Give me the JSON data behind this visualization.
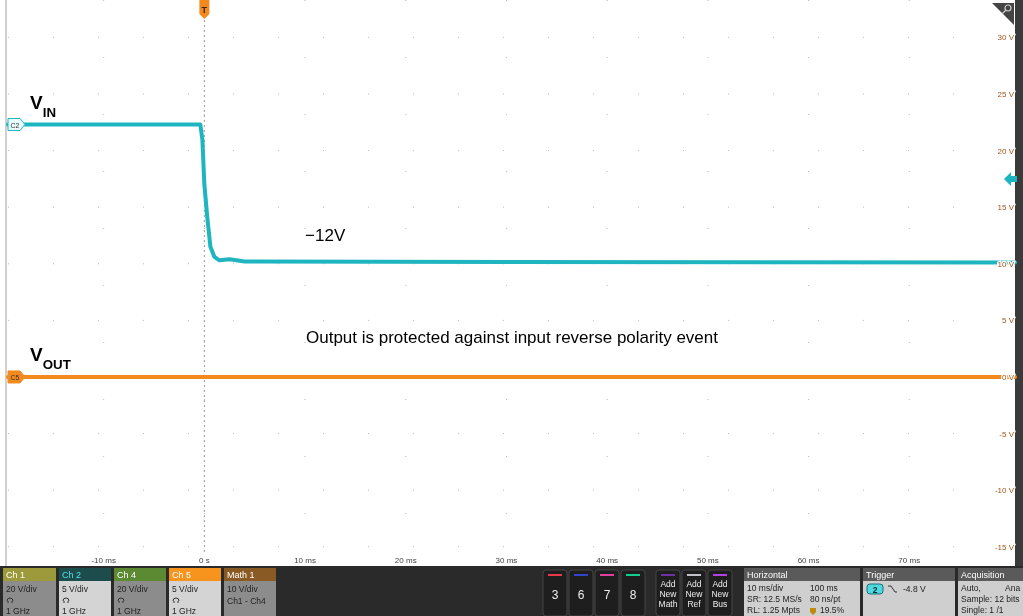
{
  "chart_data": [
    {
      "type": "line",
      "xlim": [
        -19.5,
        80.5
      ],
      "ylim": [
        -16.7,
        33.3
      ],
      "xticks": [
        {
          "value": -10,
          "label": "-10 ms"
        },
        {
          "value": 0,
          "label": "0 s"
        },
        {
          "value": 10,
          "label": "10 ms"
        },
        {
          "value": 20,
          "label": "20 ms"
        },
        {
          "value": 30,
          "label": "30 ms"
        },
        {
          "value": 40,
          "label": "40 ms"
        },
        {
          "value": 50,
          "label": "50 ms"
        },
        {
          "value": 60,
          "label": "60 ms"
        },
        {
          "value": 70,
          "label": "70 ms"
        }
      ],
      "yticks": [
        {
          "value": -15,
          "label": "-15 V"
        },
        {
          "value": -10,
          "label": "-10 V"
        },
        {
          "value": -5,
          "label": "-5 V"
        },
        {
          "value": 0,
          "label": "0 V"
        },
        {
          "value": 5,
          "label": "5 V"
        },
        {
          "value": 10,
          "label": "10 V"
        },
        {
          "value": 15,
          "label": "15 V"
        },
        {
          "value": 20,
          "label": "20 V"
        },
        {
          "value": 25,
          "label": "25 V"
        },
        {
          "value": 30,
          "label": "30 V"
        }
      ],
      "grid": true,
      "series": [
        {
          "name": "V$_{IN}$",
          "color": "#1fb5c0",
          "x": [
            -19.5,
            -0.4,
            -0.2,
            0,
            0.3,
            0.6,
            1,
            1.5,
            2.5,
            4,
            80.5
          ],
          "values": [
            22.3,
            22.3,
            21,
            17,
            14,
            11.5,
            10.6,
            10.3,
            10.4,
            10.2,
            10.1
          ]
        },
        {
          "name": "V$_{OUT}$",
          "color": "#f28a1e",
          "x": [
            -19.5,
            80.5
          ],
          "values": [
            0,
            0
          ]
        }
      ],
      "ref_lines": [
        {
          "axis": "x",
          "value": 0,
          "label": "T",
          "line_style": "dotted"
        }
      ],
      "annotations": [
        "−12V",
        "Output is protected against input reverse polarity event",
        "C2",
        "C5"
      ]
    },
    {
      "type": "other",
      "annotations": [
        "Ch 1",
        "20 V/div",
        "1 GHz",
        "Ch 2",
        "5 V/div",
        "1 GHz",
        "Ch 4",
        "20 V/div",
        "1 GHz",
        "Ch 5",
        "5 V/div",
        "1 GHz",
        "Math 1",
        "10 V/div",
        "Ch1 - Ch4",
        "3",
        "6",
        "7",
        "8",
        "Add New Math",
        "Add New Ref",
        "Add New Bus",
        "Horizontal",
        "10 ms/div",
        "100 ms",
        "SR: 12.5 MS/s",
        "80 ns/pt",
        "RL: 1.25 Mpts",
        "19.5%",
        "Trigger",
        "2",
        "-4.8 V",
        "Acquisition",
        "Auto,",
        "Ana",
        "Sample: 12 bits",
        "Single: 1 /1"
      ]
    }
  ]
}
